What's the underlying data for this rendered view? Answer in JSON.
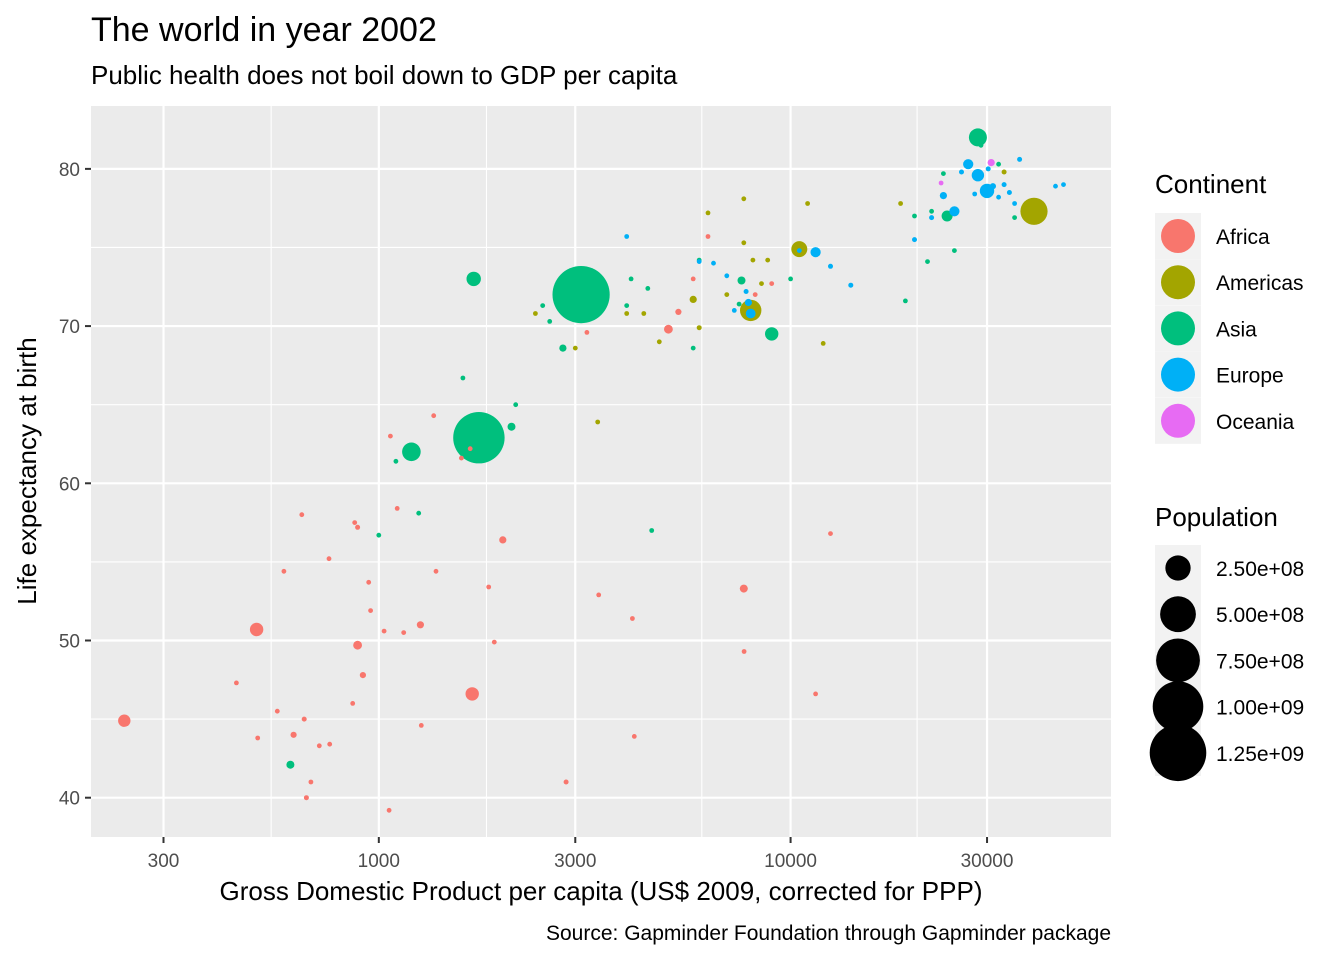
{
  "chart_data": {
    "type": "scatter",
    "title": "The world in year 2002",
    "subtitle": "Public health does not boil down to GDP per capita",
    "xlabel": "Gross Domestic Product per capita (US$ 2009, corrected for PPP)",
    "ylabel": "Life expectancy at birth",
    "caption": "Source: Gapminder Foundation through Gapminder package",
    "x_scale": "log10",
    "xlim": [
      200,
      60000
    ],
    "ylim": [
      37.5,
      84
    ],
    "x_ticks": [
      300,
      1000,
      3000,
      10000,
      30000
    ],
    "x_tick_labels": [
      "300",
      "1000",
      "3000",
      "10000",
      "30000"
    ],
    "y_ticks": [
      40,
      50,
      60,
      70,
      80
    ],
    "y_tick_labels": [
      "40",
      "50",
      "60",
      "70",
      "80"
    ],
    "grid": true,
    "legend_placement": "right",
    "color_legend": {
      "title": "Continent",
      "items": [
        {
          "label": "Africa",
          "color": "#F8766D"
        },
        {
          "label": "Americas",
          "color": "#A3A500"
        },
        {
          "label": "Asia",
          "color": "#00BF7D"
        },
        {
          "label": "Europe",
          "color": "#00B0F6"
        },
        {
          "label": "Oceania",
          "color": "#E76BF3"
        }
      ]
    },
    "size_legend": {
      "title": "Population",
      "items": [
        {
          "label": "2.50e+08",
          "value": 250000000
        },
        {
          "label": "5.00e+08",
          "value": 500000000
        },
        {
          "label": "7.50e+08",
          "value": 750000000
        },
        {
          "label": "1.00e+09",
          "value": 1000000000
        },
        {
          "label": "1.25e+09",
          "value": 1250000000
        }
      ]
    },
    "series": [
      {
        "name": "Africa",
        "points": [
          [
            241,
            44.9,
            60
          ],
          [
            451,
            47.3,
            5
          ],
          [
            505,
            50.7,
            70
          ],
          [
            508,
            43.8,
            3
          ],
          [
            567,
            45.5,
            3
          ],
          [
            588,
            54.4,
            8
          ],
          [
            621,
            44.0,
            15
          ],
          [
            650,
            58.0,
            3
          ],
          [
            659,
            45.0,
            10
          ],
          [
            667,
            40.0,
            10
          ],
          [
            684,
            41.0,
            5
          ],
          [
            717,
            43.3,
            3
          ],
          [
            757,
            55.2,
            5
          ],
          [
            760,
            43.4,
            5
          ],
          [
            864,
            46.0,
            5
          ],
          [
            874,
            57.5,
            5
          ],
          [
            888,
            57.2,
            10
          ],
          [
            888,
            49.7,
            30
          ],
          [
            915,
            47.8,
            15
          ],
          [
            945,
            53.7,
            5
          ],
          [
            955,
            51.9,
            8
          ],
          [
            1030,
            50.6,
            5
          ],
          [
            1059,
            39.2,
            5
          ],
          [
            1067,
            63.0,
            3
          ],
          [
            1108,
            58.4,
            8
          ],
          [
            1149,
            50.5,
            5
          ],
          [
            1262,
            51.0,
            20
          ],
          [
            1268,
            44.6,
            3
          ],
          [
            1359,
            64.3,
            3
          ],
          [
            1377,
            54.4,
            3
          ],
          [
            1587,
            61.6,
            5
          ],
          [
            1667,
            62.2,
            3
          ],
          [
            1686,
            46.6,
            70
          ],
          [
            1849,
            53.4,
            3
          ],
          [
            1907,
            49.9,
            8
          ],
          [
            2000,
            56.4,
            20
          ],
          [
            2850,
            41.0,
            10
          ],
          [
            3201,
            69.6,
            8
          ],
          [
            3420,
            52.9,
            3
          ],
          [
            4129,
            51.4,
            2
          ],
          [
            4173,
            43.9,
            2
          ],
          [
            5050,
            69.8,
            30
          ],
          [
            5339,
            70.9,
            15
          ],
          [
            5800,
            73.0,
            5
          ],
          [
            6300,
            75.7,
            2
          ],
          [
            7700,
            53.3,
            25
          ],
          [
            7710,
            49.3,
            2
          ],
          [
            8206,
            72.0,
            3
          ],
          [
            9000,
            72.7,
            5
          ],
          [
            11500,
            46.6,
            2
          ],
          [
            12500,
            56.8,
            2
          ]
        ]
      },
      {
        "name": "Americas",
        "points": [
          [
            2400,
            70.8,
            5
          ],
          [
            3000,
            68.6,
            5
          ],
          [
            3400,
            63.9,
            5
          ],
          [
            4000,
            70.8,
            5
          ],
          [
            4400,
            70.8,
            5
          ],
          [
            4800,
            69.0,
            5
          ],
          [
            5800,
            71.7,
            20
          ],
          [
            6000,
            69.9,
            10
          ],
          [
            6300,
            77.2,
            5
          ],
          [
            7000,
            72.0,
            3
          ],
          [
            7700,
            78.1,
            3
          ],
          [
            7700,
            75.3,
            3
          ],
          [
            8000,
            71.0,
            180
          ],
          [
            8100,
            74.2,
            3
          ],
          [
            8500,
            72.7,
            5
          ],
          [
            8800,
            74.2,
            5
          ],
          [
            10500,
            74.9,
            100
          ],
          [
            11000,
            77.8,
            5
          ],
          [
            12000,
            68.9,
            3
          ],
          [
            18500,
            77.8,
            3
          ],
          [
            33000,
            79.8,
            10
          ],
          [
            39000,
            77.3,
            290
          ]
        ]
      },
      {
        "name": "Asia",
        "points": [
          [
            610,
            42.1,
            25
          ],
          [
            1000,
            56.7,
            5
          ],
          [
            1100,
            61.4,
            5
          ],
          [
            1200,
            62.0,
            135
          ],
          [
            1250,
            58.1,
            3
          ],
          [
            1700,
            73.0,
            80
          ],
          [
            1600,
            66.7,
            5
          ],
          [
            1750,
            62.9,
            1030
          ],
          [
            2100,
            63.6,
            25
          ],
          [
            2150,
            65.0,
            3
          ],
          [
            2500,
            71.3,
            3
          ],
          [
            2600,
            70.3,
            5
          ],
          [
            2800,
            68.6,
            20
          ],
          [
            3100,
            72.0,
            1280
          ],
          [
            3200,
            70.8,
            5
          ],
          [
            4000,
            71.3,
            3
          ],
          [
            4100,
            73.0,
            5
          ],
          [
            4500,
            72.4,
            3
          ],
          [
            4600,
            57.0,
            5
          ],
          [
            5800,
            68.6,
            3
          ],
          [
            6000,
            74.2,
            3
          ],
          [
            7500,
            71.4,
            3
          ],
          [
            7600,
            72.9,
            25
          ],
          [
            9000,
            69.5,
            70
          ],
          [
            10000,
            73.0,
            5
          ],
          [
            19000,
            71.6,
            5
          ],
          [
            20000,
            77.0,
            5
          ],
          [
            21500,
            74.1,
            3
          ],
          [
            22000,
            77.3,
            3
          ],
          [
            23500,
            79.7,
            3
          ],
          [
            24000,
            77.0,
            48
          ],
          [
            25000,
            74.8,
            3
          ],
          [
            28500,
            82.0,
            127
          ],
          [
            29000,
            81.5,
            5
          ],
          [
            32000,
            80.3,
            5
          ],
          [
            35000,
            76.9,
            5
          ]
        ]
      },
      {
        "name": "Europe",
        "points": [
          [
            4000,
            75.7,
            3
          ],
          [
            6000,
            74.1,
            3
          ],
          [
            6500,
            74.0,
            3
          ],
          [
            7000,
            73.2,
            5
          ],
          [
            7300,
            71.0,
            5
          ],
          [
            7800,
            72.2,
            10
          ],
          [
            7900,
            71.5,
            20
          ],
          [
            8000,
            70.8,
            38
          ],
          [
            10500,
            74.8,
            5
          ],
          [
            11500,
            74.7,
            40
          ],
          [
            12500,
            73.8,
            10
          ],
          [
            14000,
            72.6,
            10
          ],
          [
            20000,
            75.5,
            10
          ],
          [
            22000,
            76.9,
            10
          ],
          [
            23500,
            78.3,
            20
          ],
          [
            25000,
            77.3,
            40
          ],
          [
            26000,
            79.8,
            10
          ],
          [
            27000,
            80.3,
            40
          ],
          [
            28000,
            78.4,
            5
          ],
          [
            28500,
            79.6,
            60
          ],
          [
            30000,
            78.6,
            80
          ],
          [
            30200,
            80.0,
            10
          ],
          [
            31000,
            78.9,
            15
          ],
          [
            32000,
            78.2,
            5
          ],
          [
            33000,
            79.0,
            10
          ],
          [
            34000,
            78.5,
            10
          ],
          [
            35000,
            77.8,
            5
          ],
          [
            36000,
            80.6,
            10
          ],
          [
            44000,
            78.9,
            5
          ],
          [
            46000,
            79.0,
            5
          ]
        ]
      },
      {
        "name": "Oceania",
        "points": [
          [
            23200,
            79.1,
            4
          ],
          [
            30700,
            80.4,
            20
          ]
        ]
      }
    ]
  }
}
